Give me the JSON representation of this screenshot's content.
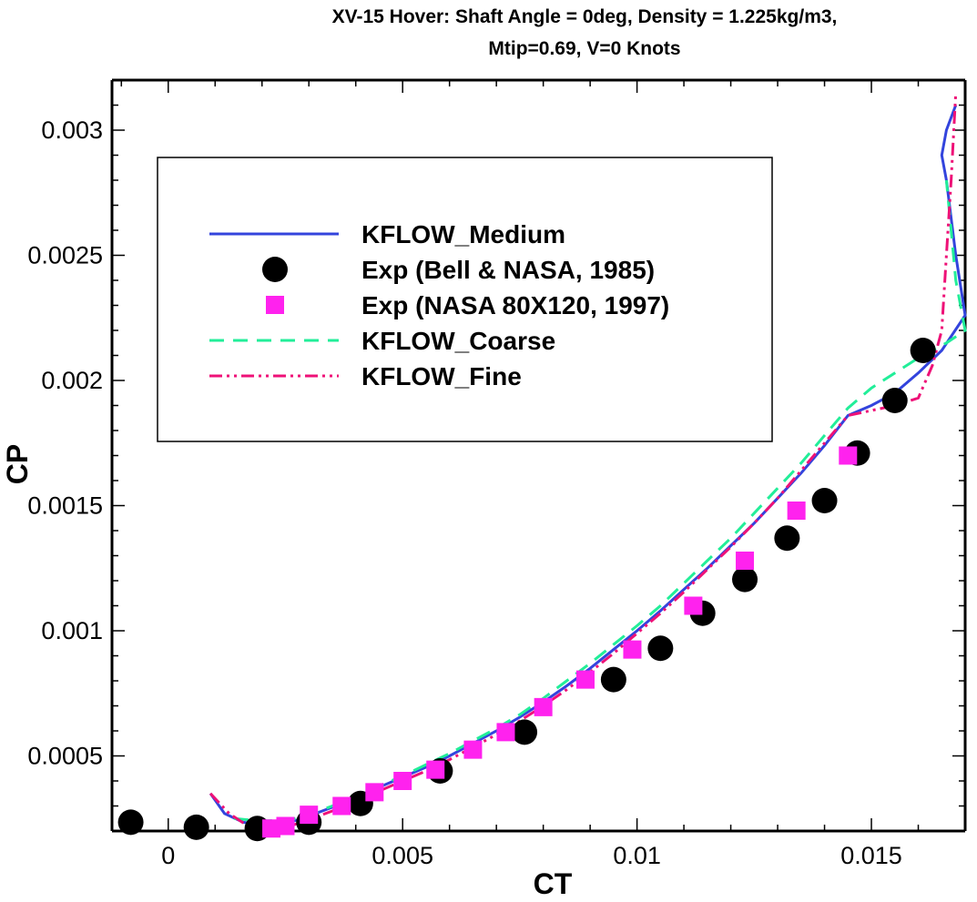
{
  "chart_data": {
    "type": "line",
    "title_line1": "XV-15 Hover: Shaft Angle = 0deg, Density = 1.225kg/m3,",
    "title_line2": "Mtip=0.69, V=0 Knots",
    "xlabel": "CT",
    "ylabel": "CP",
    "xlim": [
      -0.0012,
      0.017
    ],
    "ylim": [
      0.0002,
      0.0032
    ],
    "x_ticks": [
      0,
      0.005,
      0.01,
      0.015
    ],
    "x_tick_labels": [
      "0",
      "0.005",
      "0.01",
      "0.015"
    ],
    "y_ticks": [
      0.0005,
      0.001,
      0.0015,
      0.002,
      0.0025,
      0.003
    ],
    "y_tick_labels": [
      "0.0005",
      "0.001",
      "0.0015",
      "0.002",
      "0.0025",
      "0.003"
    ],
    "grid": false,
    "legend_position": "upper-left",
    "series": [
      {
        "name": "KFLOW_Medium",
        "style": "line",
        "color": "#3344dd",
        "x": [
          0.0009,
          0.0012,
          0.0016,
          0.002,
          0.0026,
          0.003,
          0.0035,
          0.004,
          0.0045,
          0.005,
          0.0055,
          0.006,
          0.0065,
          0.007,
          0.0075,
          0.008,
          0.0085,
          0.009,
          0.0095,
          0.01,
          0.0105,
          0.011,
          0.0115,
          0.012,
          0.0125,
          0.013,
          0.0135,
          0.014,
          0.0145,
          0.015,
          0.0155,
          0.016,
          0.0165,
          0.017,
          0.0168,
          0.0166,
          0.0165,
          0.0166,
          0.0168
        ],
        "y": [
          0.00035,
          0.00027,
          0.000235,
          0.000225,
          0.000235,
          0.00026,
          0.000295,
          0.000335,
          0.000375,
          0.000415,
          0.000455,
          0.0005,
          0.00055,
          0.0006,
          0.000655,
          0.000715,
          0.00078,
          0.00085,
          0.000925,
          0.001,
          0.00108,
          0.001165,
          0.00125,
          0.00134,
          0.00143,
          0.00153,
          0.00163,
          0.00174,
          0.00186,
          0.0019,
          0.00195,
          0.00203,
          0.00212,
          0.00226,
          0.0025,
          0.0028,
          0.0029,
          0.003,
          0.0031
        ]
      },
      {
        "name": "Exp (Bell & NASA, 1985)",
        "style": "marker-circle",
        "color": "#000000",
        "x": [
          -0.0008,
          0.0006,
          0.0019,
          0.003,
          0.0041,
          0.0058,
          0.0076,
          0.0095,
          0.0105,
          0.0114,
          0.0123,
          0.0132,
          0.014,
          0.0147,
          0.0155,
          0.0161
        ],
        "y": [
          0.000235,
          0.000215,
          0.00021,
          0.000235,
          0.00031,
          0.00044,
          0.000595,
          0.000805,
          0.00093,
          0.00107,
          0.001205,
          0.00137,
          0.00152,
          0.00171,
          0.00192,
          0.00212
        ]
      },
      {
        "name": "Exp (NASA 80X120, 1997)",
        "style": "marker-square",
        "color": "#ff22ee",
        "x": [
          0.0022,
          0.0025,
          0.003,
          0.0037,
          0.0044,
          0.005,
          0.0057,
          0.0065,
          0.0072,
          0.008,
          0.0089,
          0.0099,
          0.0112,
          0.0123,
          0.0134,
          0.0145
        ],
        "y": [
          0.00021,
          0.00022,
          0.000265,
          0.0003,
          0.000355,
          0.0004,
          0.000445,
          0.000525,
          0.000595,
          0.000695,
          0.000805,
          0.000925,
          0.0011,
          0.00128,
          0.00148,
          0.0017
        ]
      },
      {
        "name": "KFLOW_Coarse",
        "style": "dashed",
        "color": "#22ee99",
        "x": [
          0.0014,
          0.002,
          0.0026,
          0.003,
          0.0035,
          0.004,
          0.0045,
          0.005,
          0.0055,
          0.006,
          0.0065,
          0.007,
          0.0075,
          0.008,
          0.0085,
          0.009,
          0.0095,
          0.01,
          0.0105,
          0.011,
          0.0115,
          0.012,
          0.0125,
          0.013,
          0.0135,
          0.014,
          0.0145,
          0.015,
          0.0155,
          0.016,
          0.0163,
          0.0166,
          0.017,
          0.0168,
          0.0167,
          0.0166
        ],
        "y": [
          0.00025,
          0.00024,
          0.000245,
          0.000265,
          0.0003,
          0.00034,
          0.00038,
          0.00042,
          0.000465,
          0.00051,
          0.00056,
          0.00061,
          0.000665,
          0.00073,
          0.0008,
          0.00087,
          0.000945,
          0.00102,
          0.0011,
          0.00119,
          0.00128,
          0.00137,
          0.00147,
          0.00157,
          0.00167,
          0.00178,
          0.00189,
          0.00197,
          0.00203,
          0.00209,
          0.00212,
          0.00215,
          0.0022,
          0.0024,
          0.0026,
          0.0028
        ]
      },
      {
        "name": "KFLOW_Fine",
        "style": "dash-dot-dot",
        "color": "#ee1177",
        "x": [
          0.0009,
          0.0013,
          0.0017,
          0.0022,
          0.0026,
          0.003,
          0.0035,
          0.004,
          0.0045,
          0.005,
          0.0055,
          0.006,
          0.0065,
          0.007,
          0.0075,
          0.008,
          0.0085,
          0.009,
          0.0095,
          0.01,
          0.0105,
          0.011,
          0.0115,
          0.012,
          0.0125,
          0.013,
          0.0135,
          0.014,
          0.0145,
          0.015,
          0.0155,
          0.016,
          0.0163,
          0.0165,
          0.0166,
          0.0167,
          0.0168
        ],
        "y": [
          0.00035,
          0.00027,
          0.00022,
          0.00021,
          0.00022,
          0.000245,
          0.00028,
          0.00032,
          0.00036,
          0.0004,
          0.00044,
          0.000485,
          0.000535,
          0.000585,
          0.00064,
          0.0007,
          0.000765,
          0.000835,
          0.00091,
          0.00099,
          0.00107,
          0.001155,
          0.001245,
          0.001335,
          0.00143,
          0.00153,
          0.00164,
          0.00175,
          0.00186,
          0.00188,
          0.0019,
          0.00193,
          0.00206,
          0.0022,
          0.0025,
          0.0028,
          0.00315
        ]
      }
    ]
  }
}
